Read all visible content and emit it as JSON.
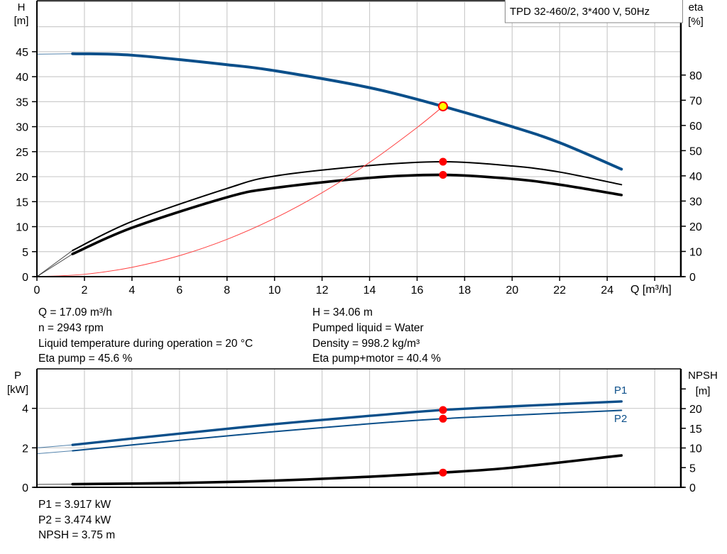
{
  "legend_box": "TPD 32-460/2, 3*400 V, 50Hz",
  "info_top": {
    "left": [
      "Q = 17.09 m³/h",
      "n = 2943 rpm",
      "Liquid temperature during operation = 20 °C",
      "Eta pump = 45.6 %"
    ],
    "right": [
      "H = 34.06 m",
      "Pumped liquid = Water",
      "Density = 998.2 kg/m³",
      "Eta pump+motor = 40.4 %"
    ]
  },
  "info_bottom": [
    "P1 = 3.917 kW",
    "P2 = 3.474 kW",
    "NPSH = 3.75 m"
  ],
  "colors": {
    "head": "#0b4f8a",
    "power": "#0b4f8a",
    "eta": "#000000",
    "npsh": "#000000",
    "system": "#ff4040",
    "marker": "#ff0000",
    "duty_point": "#ffff00",
    "grid": "#cccccc"
  },
  "chart_data": [
    {
      "type": "line",
      "xlabel": "Q [m³/h]",
      "ylabel_left": [
        "H",
        "[m]"
      ],
      "ylabel_right": [
        "eta",
        "[%]"
      ],
      "xlim": [
        0,
        27.1
      ],
      "ylim_left": [
        0,
        55.2
      ],
      "ylim_right": [
        0,
        109.5
      ],
      "x_ticks": [
        "0",
        "2",
        "4",
        "6",
        "8",
        "10",
        "12",
        "14",
        "16",
        "18",
        "20",
        "22",
        "24"
      ],
      "y_ticks_left": [
        "0",
        "5",
        "10",
        "15",
        "20",
        "25",
        "30",
        "35",
        "40",
        "45"
      ],
      "y_ticks_right": [
        "0",
        "10",
        "20",
        "30",
        "40",
        "50",
        "60",
        "70",
        "80"
      ],
      "grid": true,
      "series": [
        {
          "key": "H",
          "axis": "left",
          "x": [
            0,
            1.5,
            4,
            8,
            10,
            14,
            17.09,
            20,
            22,
            24.6
          ],
          "y": [
            44.5,
            44.6,
            44.3,
            42.4,
            41.2,
            37.8,
            34.06,
            30.0,
            26.8,
            21.5
          ]
        },
        {
          "key": "eta_pump",
          "axis": "right",
          "x": [
            0,
            1.5,
            4,
            8,
            10,
            14,
            17.09,
            20,
            22,
            24.6
          ],
          "y": [
            0,
            10.4,
            21.9,
            35.0,
            39.9,
            44.1,
            45.6,
            43.9,
            41.5,
            36.5
          ]
        },
        {
          "key": "eta_pump_motor",
          "axis": "right",
          "x": [
            0,
            1.5,
            4,
            8,
            10,
            14,
            17.09,
            20,
            22,
            24.6
          ],
          "y": [
            0,
            9.0,
            19.4,
            31.5,
            35.2,
            39.2,
            40.4,
            38.8,
            36.5,
            32.4
          ]
        },
        {
          "key": "system_curve",
          "axis": "left",
          "x": [
            0,
            2,
            4,
            6,
            8,
            10,
            12,
            14,
            16,
            17.09
          ],
          "y": [
            0,
            0.47,
            1.87,
            4.2,
            7.46,
            11.66,
            16.79,
            22.85,
            29.84,
            34.06
          ]
        }
      ],
      "duty_point": {
        "Q": 17.09,
        "H": 34.06,
        "eta_pump": 45.6,
        "eta_pump_motor": 40.4
      }
    },
    {
      "type": "line",
      "xlabel": "",
      "ylabel_left": [
        "P",
        "[kW]"
      ],
      "ylabel_right": [
        "NPSH",
        "[m]"
      ],
      "xlim": [
        0,
        27.1
      ],
      "ylim_left": [
        0,
        6.0
      ],
      "ylim_right": [
        0,
        30.1
      ],
      "y_ticks_left": [
        "0",
        "2",
        "4"
      ],
      "y_ticks_right": [
        "0",
        "5",
        "10",
        "15",
        "20"
      ],
      "grid": true,
      "series": [
        {
          "key": "P1",
          "name": "P1",
          "axis": "left",
          "x": [
            0,
            1.5,
            6,
            10,
            14,
            17.09,
            20,
            24.6
          ],
          "y": [
            2.0,
            2.15,
            2.72,
            3.2,
            3.62,
            3.917,
            4.1,
            4.35
          ]
        },
        {
          "key": "P2",
          "name": "P2",
          "axis": "left",
          "x": [
            0,
            1.5,
            6,
            10,
            14,
            17.09,
            20,
            24.6
          ],
          "y": [
            1.7,
            1.85,
            2.38,
            2.82,
            3.22,
            3.474,
            3.65,
            3.9
          ]
        },
        {
          "key": "NPSH",
          "axis": "right",
          "x": [
            0,
            1.5,
            6,
            10,
            14,
            17.09,
            20,
            24.6
          ],
          "y": [
            0.75,
            0.8,
            1.1,
            1.7,
            2.7,
            3.75,
            5.0,
            8.1
          ]
        }
      ],
      "duty_point": {
        "Q": 17.09,
        "P1": 3.917,
        "P2": 3.474,
        "NPSH": 3.75
      }
    }
  ]
}
